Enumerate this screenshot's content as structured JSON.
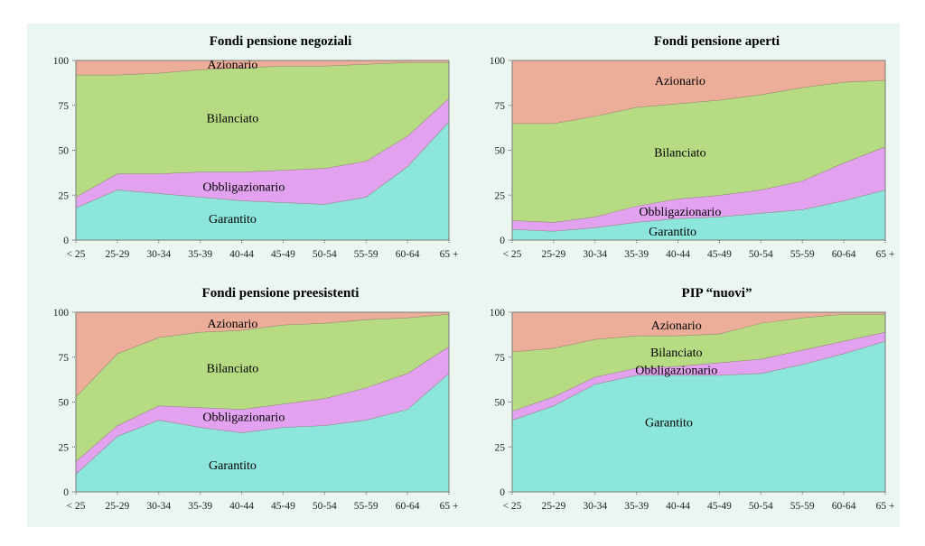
{
  "colors": {
    "Garantito": "#8de6dc",
    "Obbligazionario": "#e3a2ef",
    "Bilanciato": "#b7db83",
    "Azionario": "#ecae98",
    "plot_bg": "#ffffff",
    "figure_bg": "#eaf6ef"
  },
  "chart_data": [
    {
      "type": "area",
      "stacked": true,
      "title": "Fondi pensione negoziali",
      "categories": [
        "< 25",
        "25-29",
        "30-34",
        "35-39",
        "40-44",
        "45-49",
        "50-54",
        "55-59",
        "60-64",
        "65 +"
      ],
      "ylim": [
        0,
        100
      ],
      "yticks": [
        "0",
        "25",
        "50",
        "75",
        "100"
      ],
      "series": [
        {
          "name": "Garantito",
          "values": [
            18,
            28,
            26,
            24,
            22,
            21,
            20,
            24,
            41,
            66
          ]
        },
        {
          "name": "Obbligazionario",
          "values": [
            6,
            9,
            11,
            14,
            16,
            18,
            20,
            20,
            17,
            13
          ]
        },
        {
          "name": "Bilanciato",
          "values": [
            68,
            55,
            56,
            57,
            58,
            58,
            57,
            54,
            41,
            20
          ]
        },
        {
          "name": "Azionario",
          "values": [
            8,
            8,
            7,
            5,
            4,
            3,
            3,
            2,
            1,
            1
          ]
        }
      ]
    },
    {
      "type": "area",
      "stacked": true,
      "title": "Fondi pensione aperti",
      "categories": [
        "< 25",
        "25-29",
        "30-34",
        "35-39",
        "40-44",
        "45-49",
        "50-54",
        "55-59",
        "60-64",
        "65 +"
      ],
      "ylim": [
        0,
        100
      ],
      "yticks": [
        "0",
        "25",
        "50",
        "75",
        "100"
      ],
      "series": [
        {
          "name": "Garantito",
          "values": [
            6,
            5,
            7,
            10,
            12,
            13,
            15,
            17,
            22,
            28
          ]
        },
        {
          "name": "Obbligazionario",
          "values": [
            5,
            5,
            6,
            9,
            11,
            12,
            13,
            16,
            21,
            24
          ]
        },
        {
          "name": "Bilanciato",
          "values": [
            54,
            55,
            56,
            55,
            53,
            53,
            53,
            52,
            45,
            37
          ]
        },
        {
          "name": "Azionario",
          "values": [
            35,
            35,
            31,
            26,
            24,
            22,
            19,
            15,
            12,
            11
          ]
        }
      ]
    },
    {
      "type": "area",
      "stacked": true,
      "title": "Fondi pensione preesistenti",
      "categories": [
        "< 25",
        "25-29",
        "30-34",
        "35-39",
        "40-44",
        "45-49",
        "50-54",
        "55-59",
        "60-64",
        "65 +"
      ],
      "ylim": [
        0,
        100
      ],
      "yticks": [
        "0",
        "25",
        "50",
        "75",
        "100"
      ],
      "series": [
        {
          "name": "Garantito",
          "values": [
            10,
            31,
            40,
            36,
            33,
            36,
            37,
            40,
            46,
            66
          ]
        },
        {
          "name": "Obbligazionario",
          "values": [
            7,
            6,
            8,
            11,
            13,
            13,
            15,
            18,
            20,
            15
          ]
        },
        {
          "name": "Bilanciato",
          "values": [
            36,
            40,
            38,
            42,
            44,
            44,
            42,
            38,
            31,
            18
          ]
        },
        {
          "name": "Azionario",
          "values": [
            47,
            23,
            14,
            11,
            10,
            7,
            6,
            4,
            3,
            1
          ]
        }
      ]
    },
    {
      "type": "area",
      "stacked": true,
      "title": "PIP “nuovi”",
      "categories": [
        "< 25",
        "25-29",
        "30-34",
        "35-39",
        "40-44",
        "45-49",
        "50-54",
        "55-59",
        "60-64",
        "65 +"
      ],
      "ylim": [
        0,
        100
      ],
      "yticks": [
        "0",
        "25",
        "50",
        "75",
        "100"
      ],
      "series": [
        {
          "name": "Garantito",
          "values": [
            40,
            48,
            60,
            65,
            65,
            65,
            66,
            71,
            77,
            84
          ]
        },
        {
          "name": "Obbligazionario",
          "values": [
            5,
            5,
            4,
            4,
            5,
            7,
            8,
            8,
            7,
            5
          ]
        },
        {
          "name": "Bilanciato",
          "values": [
            33,
            27,
            21,
            18,
            17,
            16,
            20,
            18,
            15,
            10
          ]
        },
        {
          "name": "Azionario",
          "values": [
            22,
            20,
            15,
            13,
            13,
            12,
            6,
            3,
            1,
            1
          ]
        }
      ]
    }
  ]
}
